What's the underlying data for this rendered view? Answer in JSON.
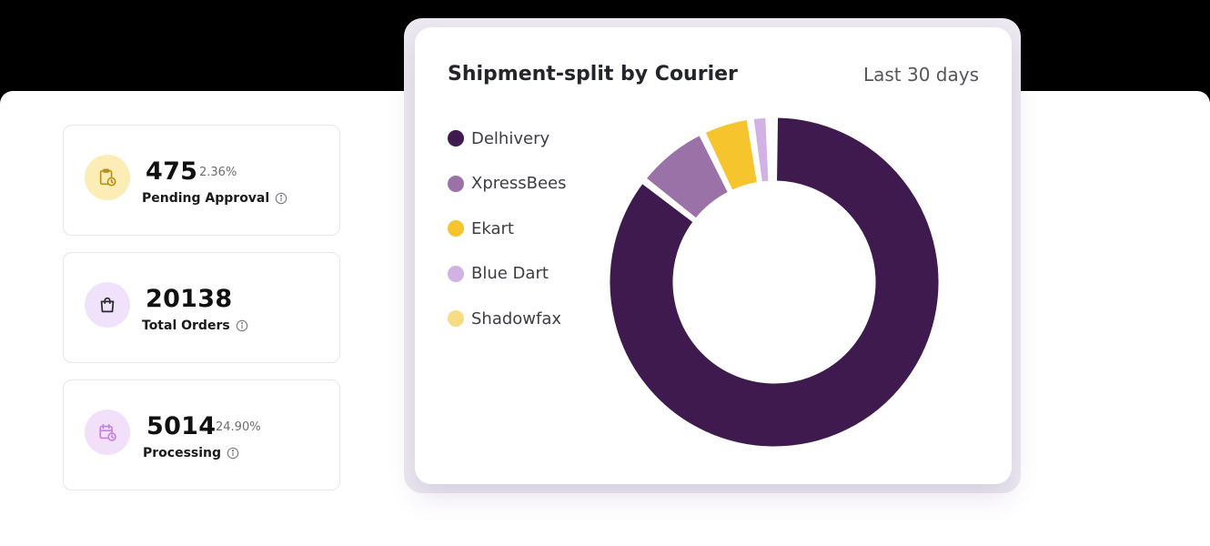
{
  "stats": [
    {
      "value": "475",
      "percent": "2.36%",
      "label": "Pending Approval",
      "icon": "clipboard-clock-icon",
      "icon_bg": "#fcecb6",
      "icon_color": "#b8911c"
    },
    {
      "value": "20138",
      "percent": "",
      "label": "Total Orders",
      "icon": "shopping-bag-icon",
      "icon_bg": "#f1e2fb",
      "icon_color": "#2b2b2b"
    },
    {
      "value": "5014",
      "percent": "24.90%",
      "label": "Processing",
      "icon": "calendar-clock-icon",
      "icon_bg": "#f2e0fb",
      "icon_color": "#c582dc"
    }
  ],
  "chart": {
    "title": "Shipment-split by Courier",
    "range": "Last 30 days"
  },
  "chart_data": {
    "type": "pie",
    "title": "Shipment-split by Courier",
    "categories": [
      "Delhivery",
      "XpressBees",
      "Ekart",
      "Blue Dart",
      "Shadowfax"
    ],
    "values": [
      84.5,
      7.2,
      4.8,
      1.8,
      0.5
    ],
    "colors": [
      "#3e1a4f",
      "#9a72a8",
      "#f6c42c",
      "#d2b2e4",
      "#f6dc82"
    ],
    "legend": "left"
  }
}
